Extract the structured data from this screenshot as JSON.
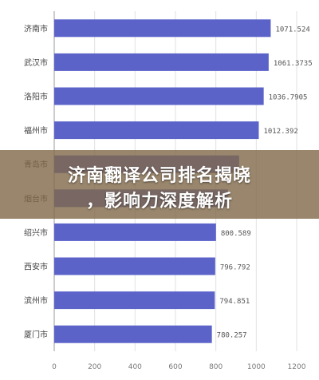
{
  "chart_data": {
    "type": "bar",
    "orientation": "horizontal",
    "categories": [
      "济南市",
      "武汉市",
      "洛阳市",
      "福州市",
      "青岛市",
      "烟台市",
      "绍兴市",
      "西安市",
      "滨州市",
      "厦门市"
    ],
    "values": [
      1071.524,
      1061.3735,
      1036.7905,
      1012.392,
      915,
      860,
      800.589,
      796.792,
      794.851,
      780.257
    ],
    "value_labels": [
      "1071.524",
      "1061.3735",
      "1036.7905",
      "1012.392",
      "",
      "",
      "800.589",
      "796.792",
      "794.851",
      "780.257"
    ],
    "xlim": [
      0,
      1200
    ],
    "xticks": [
      "0",
      "200",
      "400",
      "600",
      "800",
      "1000",
      "1200"
    ],
    "grid": true,
    "bar_color": "#5b63c9"
  },
  "overlay": {
    "line1": "济南翻译公司排名揭晓",
    "line2": "，影响力深度解析"
  }
}
